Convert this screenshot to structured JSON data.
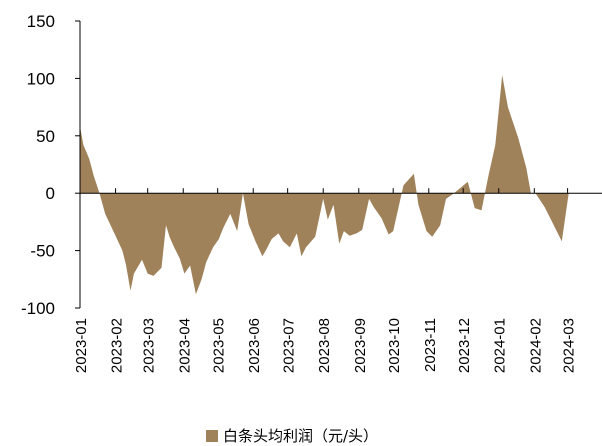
{
  "chart_data": {
    "type": "area",
    "title": "",
    "xlabel": "",
    "ylabel": "",
    "ylim": [
      -100,
      150
    ],
    "yticks": [
      -100,
      -50,
      0,
      50,
      100,
      150
    ],
    "grid": false,
    "legend_position": "bottom",
    "x_tick_labels": [
      "2023-01",
      "2023-02",
      "2023-03",
      "2023-04",
      "2023-05",
      "2023-06",
      "2023-07",
      "2023-08",
      "2023-09",
      "2023-10",
      "2023-11",
      "2023-12",
      "2024-01",
      "2024-02",
      "2024-03"
    ],
    "series": [
      {
        "name": "白条头均利润（元/头）",
        "color": "#A0825A",
        "dates": [
          "2023-01-01",
          "2023-01-04",
          "2023-01-09",
          "2023-01-13",
          "2023-01-18",
          "2023-01-23",
          "2023-01-31",
          "2023-02-07",
          "2023-02-10",
          "2023-02-14",
          "2023-02-17",
          "2023-02-24",
          "2023-03-01",
          "2023-03-06",
          "2023-03-13",
          "2023-03-17",
          "2023-03-20",
          "2023-03-24",
          "2023-03-29",
          "2023-04-02",
          "2023-04-07",
          "2023-04-12",
          "2023-04-17",
          "2023-04-21",
          "2023-04-27",
          "2023-05-02",
          "2023-05-06",
          "2023-05-12",
          "2023-05-18",
          "2023-05-23",
          "2023-05-28",
          "2023-06-03",
          "2023-06-09",
          "2023-06-13",
          "2023-06-17",
          "2023-06-23",
          "2023-06-27",
          "2023-07-03",
          "2023-07-09",
          "2023-07-13",
          "2023-07-17",
          "2023-07-25",
          "2023-08-01",
          "2023-08-05",
          "2023-08-10",
          "2023-08-15",
          "2023-08-19",
          "2023-08-24",
          "2023-08-30",
          "2023-09-04",
          "2023-09-10",
          "2023-09-14",
          "2023-09-21",
          "2023-09-27",
          "2023-10-01",
          "2023-10-10",
          "2023-10-19",
          "2023-10-23",
          "2023-10-30",
          "2023-11-04",
          "2023-11-11",
          "2023-11-16",
          "2023-11-23",
          "2023-11-29",
          "2023-12-05",
          "2023-12-11",
          "2023-12-17",
          "2023-12-23",
          "2023-12-29",
          "2024-01-04",
          "2024-01-09",
          "2024-01-18",
          "2024-01-25",
          "2024-01-29",
          "2024-02-02",
          "2024-02-10",
          "2024-02-18",
          "2024-02-25",
          "2024-03-02",
          "2024-03-09",
          "2024-03-15",
          "2024-03-20",
          "2024-03-26",
          "2024-03-31"
        ],
        "values": [
          58,
          42,
          30,
          15,
          0,
          -18,
          -35,
          -50,
          -62,
          -85,
          -70,
          -58,
          -70,
          -72,
          -65,
          -28,
          -38,
          -47,
          -57,
          -70,
          -63,
          -88,
          -75,
          -60,
          -47,
          -40,
          -30,
          -18,
          -33,
          0,
          -27,
          -42,
          -55,
          -48,
          -40,
          -35,
          -42,
          -47,
          -35,
          -55,
          -47,
          -38,
          -5,
          -23,
          -10,
          -44,
          -33,
          -37,
          -35,
          -32,
          -5,
          -12,
          -22,
          -36,
          -33,
          7,
          17,
          -10,
          -33,
          -38,
          -28,
          -5,
          0,
          5,
          10,
          -13,
          -15,
          15,
          42,
          103,
          75,
          48,
          22,
          0,
          0,
          -12,
          -28,
          -42,
          0,
          0,
          0,
          0,
          0,
          0
        ]
      }
    ]
  }
}
